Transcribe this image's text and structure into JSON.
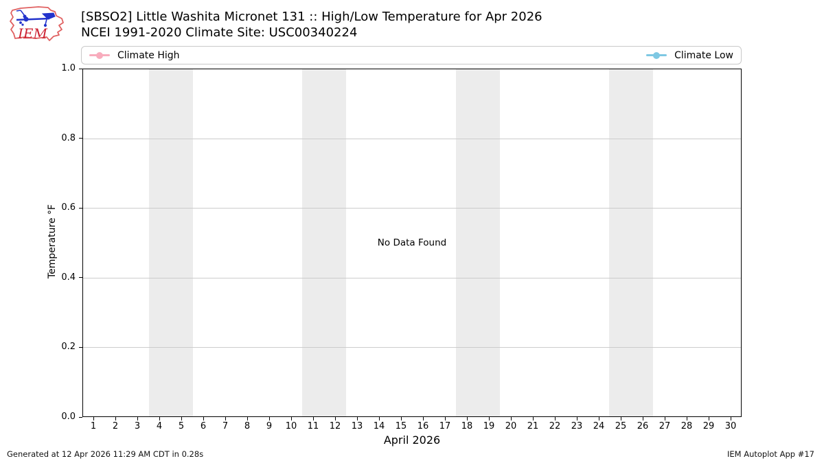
{
  "header": {
    "logo_text": "IEM",
    "title_line1": "[SBSO2] Little Washita Micronet 131 :: High/Low Temperature for Apr 2026",
    "title_line2": "NCEI 1991-2020 Climate Site: USC00340224"
  },
  "legend": {
    "items": [
      {
        "label": "Climate High",
        "color": "#F8ACBD"
      },
      {
        "label": "Climate Low",
        "color": "#7EC8E3"
      }
    ]
  },
  "chart_data": {
    "type": "line",
    "title": "[SBSO2] Little Washita Micronet 131 :: High/Low Temperature for Apr 2026",
    "subtitle": "NCEI 1991-2020 Climate Site: USC00340224",
    "xlabel": "April 2026",
    "ylabel": "Temperature °F",
    "xlim": [
      0.5,
      30.5
    ],
    "ylim": [
      0,
      1
    ],
    "x_ticks": [
      1,
      2,
      3,
      4,
      5,
      6,
      7,
      8,
      9,
      10,
      11,
      12,
      13,
      14,
      15,
      16,
      17,
      18,
      19,
      20,
      21,
      22,
      23,
      24,
      25,
      26,
      27,
      28,
      29,
      30
    ],
    "y_ticks": [
      0,
      0.2,
      0.4,
      0.6,
      0.8,
      1
    ],
    "y_tick_labels": [
      "0.0",
      "0.2",
      "0.4",
      "0.6",
      "0.8",
      "1.0"
    ],
    "series": [
      {
        "name": "Climate High",
        "color": "#F8ACBD",
        "values": []
      },
      {
        "name": "Climate Low",
        "color": "#7EC8E3",
        "values": []
      }
    ],
    "no_data_message": "No Data Found",
    "weekend_bands": [
      [
        3.5,
        5.5
      ],
      [
        10.5,
        12.5
      ],
      [
        17.5,
        19.5
      ],
      [
        24.5,
        26.5
      ]
    ],
    "band_color": "#ECECEC",
    "grid": true,
    "grid_color": "#CCCCCC",
    "legend_position": "top"
  },
  "footer": {
    "left": "Generated at 12 Apr 2026 11:29 AM CDT in 0.28s",
    "right": "IEM Autoplot App #17"
  }
}
